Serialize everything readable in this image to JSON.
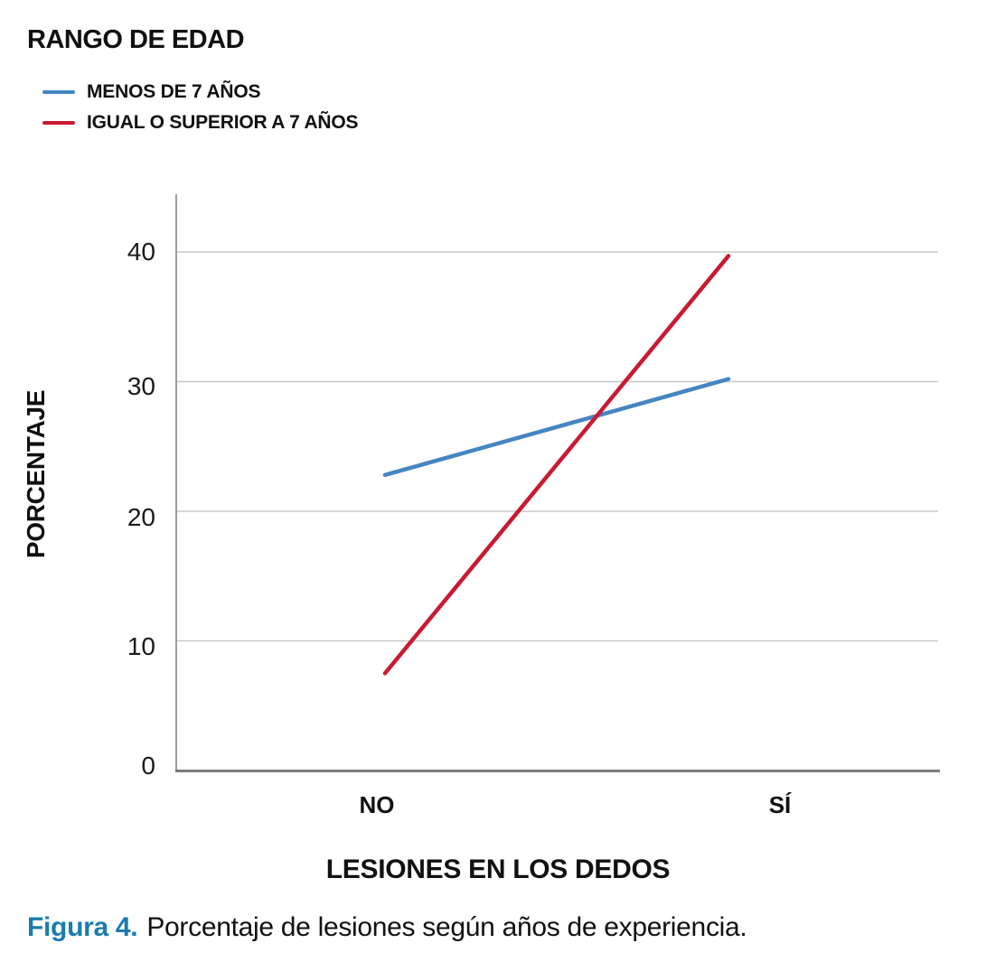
{
  "legend": {
    "title": "RANGO DE EDAD",
    "items": [
      {
        "label": "MENOS DE 7 AÑOS",
        "color": "#4585c2"
      },
      {
        "label": "IGUAL O SUPERIOR A 7 AÑOS",
        "color": "#c91a33"
      }
    ]
  },
  "chart_data": {
    "type": "line",
    "categories": [
      "NO",
      "SÍ"
    ],
    "series": [
      {
        "name": "MENOS DE 7 AÑOS",
        "color": "#4585c2",
        "values": [
          22.8,
          30.2
        ]
      },
      {
        "name": "IGUAL O SUPERIOR A 7 AÑOS",
        "color": "#c91a33",
        "values": [
          7.5,
          39.7
        ]
      }
    ],
    "title": "",
    "xlabel": "LESIONES EN LOS DEDOS",
    "ylabel": "PORCENTAJE",
    "yticks": [
      "0",
      "10",
      "20",
      "30",
      "40"
    ],
    "ylim": [
      0,
      44.5
    ],
    "grid": "horizontal",
    "legend_position": "top-left"
  },
  "caption": {
    "label": "Figura 4.",
    "text": "Porcentaje de lesiones según años de experiencia.",
    "label_color": "#1b7cad"
  }
}
